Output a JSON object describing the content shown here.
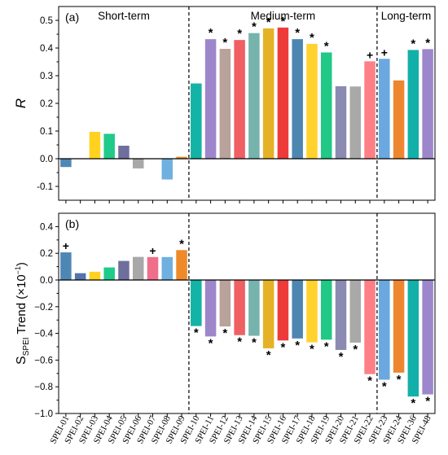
{
  "categories": [
    "SPEI-01",
    "SPEI-02",
    "SPEI-03",
    "SPEI-04",
    "SPEI-05",
    "SPEI-06",
    "SPEI-07",
    "SPEI-08",
    "SPEI-09",
    "SPEI-10",
    "SPEI-11",
    "SPEI-12",
    "SPEI-13",
    "SPEI-14",
    "SPEI-15",
    "SPEI-16",
    "SPEI-17",
    "SPEI-18",
    "SPEI-19",
    "SPEI-20",
    "SPEI-21",
    "SPEI-22",
    "SPEI-23",
    "SPEI-24",
    "SPEI-36",
    "SPEI-48"
  ],
  "colors": [
    "#4f87b4",
    "#5272b0",
    "#ffd21f",
    "#1fca8a",
    "#6f6f9e",
    "#a8a8a8",
    "#ef6f8b",
    "#6fb0df",
    "#ee8a2a",
    "#13b3a6",
    "#9e86cb",
    "#b8a29a",
    "#ef5f63",
    "#76b3ad",
    "#e5b227",
    "#ef3a3a",
    "#4e86b2",
    "#ffd22e",
    "#22c886",
    "#8a8ab3",
    "#a9a9a9",
    "#ff7f86",
    "#6aa8df",
    "#ee8630",
    "#13b0a9",
    "#9c87cc"
  ],
  "regions": {
    "short": "Short-term",
    "medium": "Medium-term",
    "long": "Long-term"
  },
  "chart_data": [
    {
      "type": "bar",
      "panel_label": "(a)",
      "ylabel": "R",
      "ylim": [
        -0.15,
        0.55
      ],
      "yticks": [
        "-0.1",
        "0.0",
        "0.1",
        "0.2",
        "0.3",
        "0.4",
        "0.5"
      ],
      "tick_values": [
        -0.1,
        0,
        0.1,
        0.2,
        0.3,
        0.4,
        0.5
      ],
      "values": [
        -0.03,
        0,
        0.097,
        0.09,
        0.047,
        -0.035,
        0,
        -0.075,
        0.007,
        0.272,
        0.432,
        0.397,
        0.429,
        0.454,
        0.471,
        0.474,
        0.432,
        0.415,
        0.384,
        0.262,
        0.261,
        0.352,
        0.361,
        0.283,
        0.393,
        0.396
      ],
      "markers": [
        "",
        "",
        "",
        "",
        "",
        "",
        "",
        "",
        "",
        "",
        "*",
        "*",
        "*",
        "*",
        "*",
        "*",
        "*",
        "*",
        "*",
        "",
        "",
        "+",
        "+",
        "",
        "*",
        "*"
      ]
    },
    {
      "type": "bar",
      "panel_label": "(b)",
      "ylabel": "S_SPEI Trend (×10⁻¹)",
      "ylabel_main": "S",
      "ylabel_sub": "SPEI",
      "ylabel_rest": " Trend (×10",
      "ylabel_sup": "−1",
      "ylabel_end": ")",
      "ylim": [
        -1.0,
        0.5
      ],
      "yticks": [
        "−1.0",
        "−0.8",
        "−0.6",
        "−0.4",
        "−0.2",
        "0.0",
        "0.2",
        "0.4"
      ],
      "tick_values": [
        -1.0,
        -0.8,
        -0.6,
        -0.4,
        -0.2,
        0,
        0.2,
        0.4
      ],
      "values": [
        0.207,
        0.051,
        0.062,
        0.094,
        0.143,
        0.173,
        0.172,
        0.172,
        0.224,
        -0.345,
        -0.423,
        -0.348,
        -0.413,
        -0.418,
        -0.512,
        -0.453,
        -0.438,
        -0.467,
        -0.447,
        -0.524,
        -0.469,
        -0.705,
        -0.747,
        -0.694,
        -0.873,
        -0.857
      ],
      "markers": [
        "+",
        "",
        "",
        "",
        "",
        "",
        "+",
        "",
        "*",
        "*",
        "*",
        "*",
        "*",
        "*",
        "*",
        "*",
        "*",
        "*",
        "*",
        "*",
        "*",
        "*",
        "*",
        "*",
        "*",
        "*"
      ]
    }
  ]
}
